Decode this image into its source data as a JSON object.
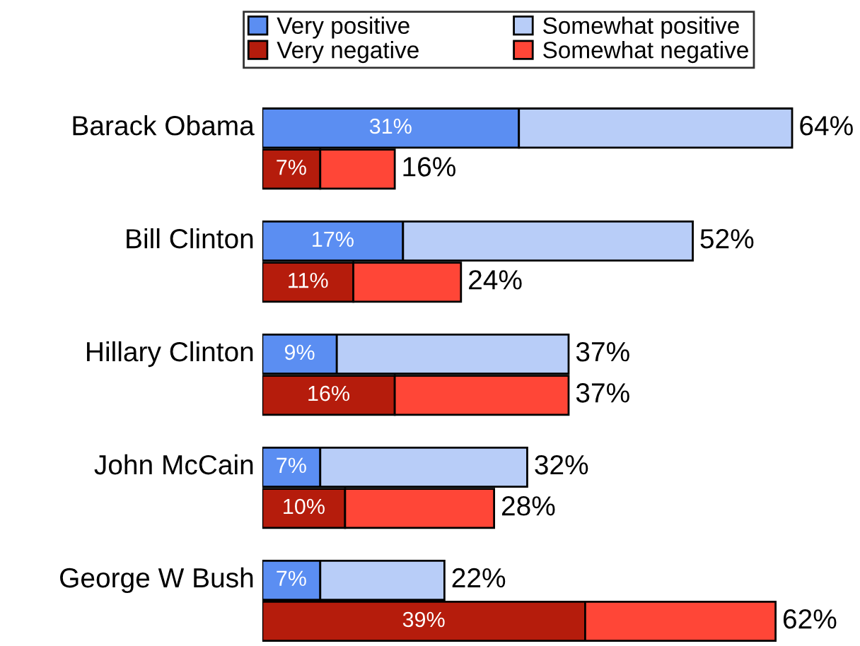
{
  "chart_data": {
    "type": "bar",
    "orientation": "horizontal",
    "stacked": true,
    "categories": [
      "Barack Obama",
      null,
      "Bill Clinton",
      null,
      "Hillary Clinton",
      null,
      "John McCain",
      null,
      "George W Bush",
      null
    ],
    "series": [
      {
        "name": "Very positive",
        "color": "#5b8ef2",
        "values": [
          31,
          null,
          17,
          null,
          9,
          null,
          7,
          null,
          7,
          null
        ],
        "value_labels": [
          "31%",
          null,
          "17%",
          null,
          "9%",
          null,
          "7%",
          null,
          "7%",
          null
        ]
      },
      {
        "name": "Somewhat positive",
        "color": "#b8cdf8",
        "values": [
          33,
          null,
          35,
          null,
          28,
          null,
          25,
          null,
          15,
          null
        ]
      },
      {
        "name": "Very negative",
        "color": "#b51c0c",
        "values": [
          null,
          7,
          null,
          11,
          null,
          16,
          null,
          10,
          null,
          39
        ],
        "value_labels": [
          null,
          "7%",
          null,
          "11%",
          null,
          "16%",
          null,
          "10%",
          null,
          "39%"
        ]
      },
      {
        "name": "Somewhat negative",
        "color": "#ff4637",
        "values": [
          null,
          9,
          null,
          13,
          null,
          21,
          null,
          18,
          null,
          23
        ]
      }
    ],
    "totals": [
      "64%",
      "16%",
      "52%",
      "24%",
      "37%",
      "37%",
      "32%",
      "28%",
      "22%",
      "62%"
    ],
    "legend": "top",
    "grid": false
  }
}
